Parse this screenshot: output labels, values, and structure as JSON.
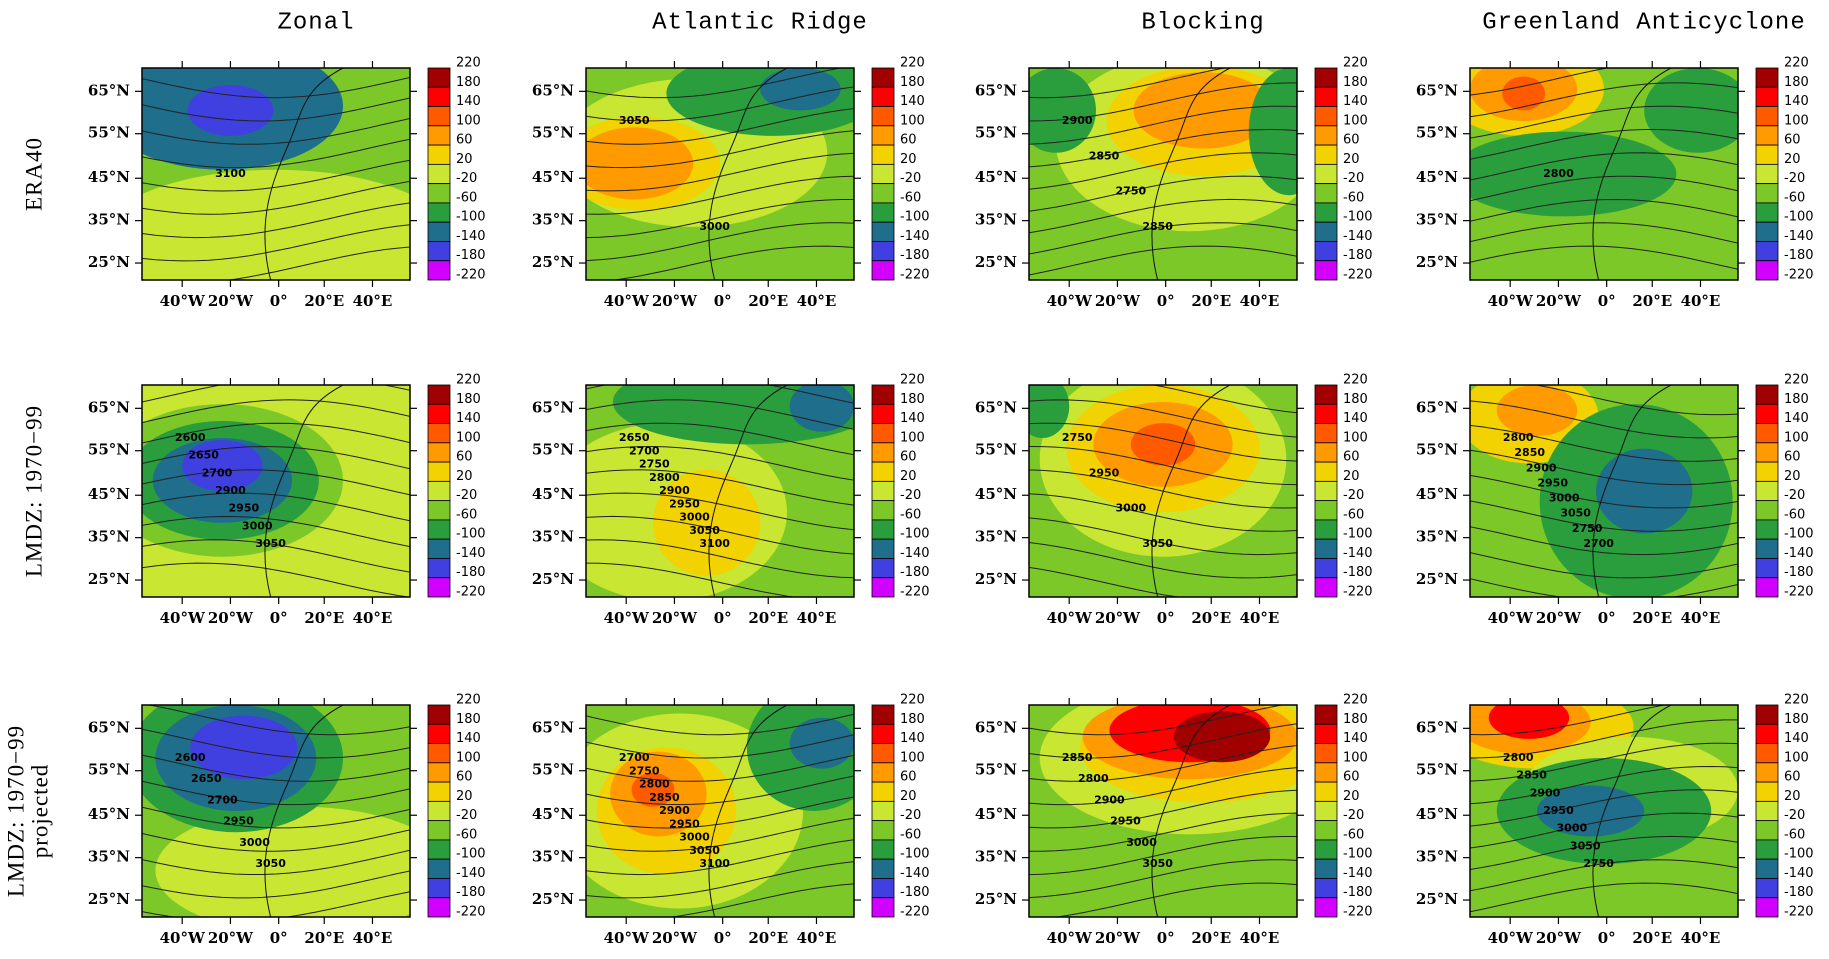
{
  "columns": [
    "Zonal",
    "Atlantic Ridge",
    "Blocking",
    "Greenland Anticyclone"
  ],
  "rows": [
    [
      "ERA40"
    ],
    [
      "LMDZ: 1970−99"
    ],
    [
      "LMDZ: 1970−99",
      "projected"
    ]
  ],
  "lat_labels": [
    "65°N",
    "55°N",
    "45°N",
    "35°N",
    "25°N"
  ],
  "lon_labels": [
    "40°W",
    "20°W",
    "0°",
    "20°E",
    "40°E"
  ],
  "colorbar": {
    "levels": [
      220,
      180,
      140,
      100,
      60,
      20,
      -20,
      -60,
      -100,
      -140,
      -180,
      -220
    ],
    "colors": [
      "#a00000",
      "#ff0000",
      "#ff5a00",
      "#ff9a00",
      "#f2d200",
      "#c8e632",
      "#7cc828",
      "#2a9e3c",
      "#1e6e8c",
      "#4040e0",
      "#d200ff"
    ]
  },
  "panels": [
    {
      "contour_labels": [
        "3100"
      ]
    },
    {
      "contour_labels": [
        "3050",
        "3000"
      ]
    },
    {
      "contour_labels": [
        "2900",
        "2850",
        "2750",
        "2850"
      ]
    },
    {
      "contour_labels": [
        "2800"
      ]
    },
    {
      "contour_labels": [
        "2600",
        "2650",
        "2700",
        "2900",
        "2950",
        "3000",
        "3050"
      ]
    },
    {
      "contour_labels": [
        "2650",
        "2700",
        "2750",
        "2800",
        "2900",
        "2950",
        "3000",
        "3050",
        "3100"
      ]
    },
    {
      "contour_labels": [
        "2750",
        "2950",
        "3000",
        "3050"
      ]
    },
    {
      "contour_labels": [
        "2800",
        "2850",
        "2900",
        "2950",
        "3000",
        "3050",
        "2750",
        "2700"
      ]
    },
    {
      "contour_labels": [
        "2600",
        "2650",
        "2700",
        "2950",
        "3000",
        "3050"
      ]
    },
    {
      "contour_labels": [
        "2700",
        "2750",
        "2800",
        "2850",
        "2900",
        "2950",
        "3000",
        "3050",
        "3100"
      ]
    },
    {
      "contour_labels": [
        "2850",
        "2800",
        "2900",
        "2950",
        "3000",
        "3050"
      ]
    },
    {
      "contour_labels": [
        "2800",
        "2850",
        "2900",
        "2950",
        "3000",
        "3050",
        "2750"
      ]
    }
  ]
}
